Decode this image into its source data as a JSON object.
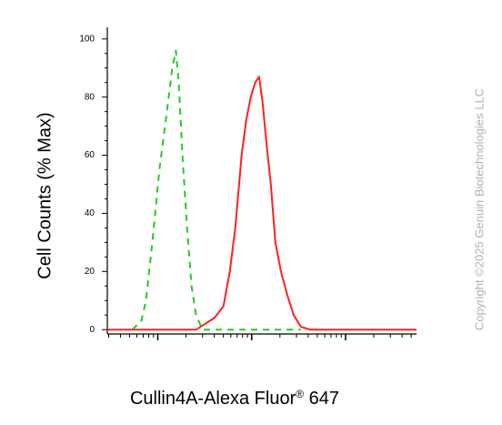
{
  "chart_data": {
    "type": "line",
    "ylabel": "Cell Counts (% Max)",
    "xlabel": {
      "text": "Cullin4A-Alexa Fluor",
      "sup": "®",
      "suffix": " 647"
    },
    "xscale": "log",
    "xlim": [
      2.9,
      5700
    ],
    "xticks": [
      10,
      100,
      1000
    ],
    "ylim": [
      -1.5,
      104
    ],
    "yticks": [
      0,
      20,
      40,
      60,
      80,
      100
    ],
    "series": [
      {
        "color": "#22cc22",
        "dash": true,
        "x": [
          5.35,
          6.68,
          7.48,
          8.75,
          10.4,
          12.5,
          14.3,
          15.6,
          16.7,
          18.3,
          20.5,
          22.9,
          25.6,
          29.9,
          334
        ],
        "values": [
          0,
          3,
          10,
          30,
          55,
          75,
          90,
          96,
          85,
          60,
          35,
          15,
          5,
          0,
          0
        ]
      },
      {
        "color": "#ff2020",
        "dash": false,
        "x": [
          2.9,
          25.6,
          32,
          40,
          50,
          58.5,
          66.9,
          78.2,
          87.5,
          97.8,
          109,
          120,
          131,
          146,
          160,
          179,
          205,
          239,
          280,
          334,
          418,
          5700
        ],
        "values": [
          0,
          0,
          2,
          4,
          8,
          20,
          35,
          60,
          72,
          80,
          85,
          87,
          78,
          62,
          50,
          30,
          20,
          12,
          5,
          1,
          0,
          0
        ]
      }
    ],
    "watermark": "Copyright ©2025 Genuin Biotechnologies LLC"
  }
}
